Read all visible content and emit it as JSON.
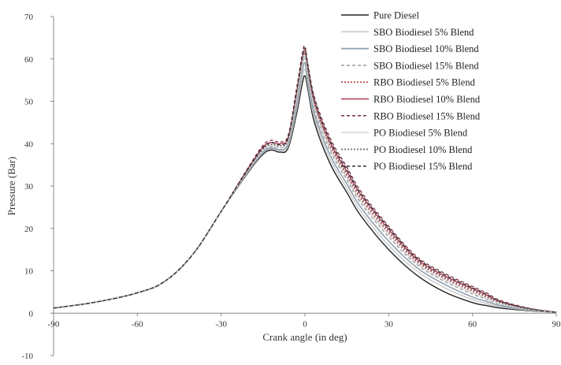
{
  "chart_data": {
    "type": "line",
    "title": "",
    "xlabel": "Crank angle (in deg)",
    "ylabel": "Pressure (Bar)",
    "xlim": [
      -90,
      90
    ],
    "ylim": [
      -10,
      70
    ],
    "x_ticks": [
      "-90",
      "-60",
      "-30",
      "0",
      "30",
      "60",
      "90"
    ],
    "y_ticks": [
      "-10",
      "0",
      "10",
      "20",
      "30",
      "40",
      "50",
      "60",
      "70"
    ],
    "grid": false,
    "legend_position": "top-right",
    "x": [
      -90,
      -75,
      -60,
      -50,
      -40,
      -30,
      -20,
      -15,
      -12,
      -9,
      -6,
      -3,
      -1,
      0,
      1,
      3,
      6,
      10,
      15,
      20,
      30,
      40,
      50,
      60,
      65,
      70,
      80,
      90
    ],
    "series": [
      {
        "name": "Pure Diesel",
        "color": "#222222",
        "dash": "solid",
        "width": 1.4,
        "values": [
          1.2,
          2.6,
          4.8,
          7.6,
          14,
          24,
          33.5,
          37.5,
          38.5,
          38,
          39,
          47,
          54,
          56,
          53,
          46,
          40,
          34,
          28.5,
          23,
          15,
          9,
          5,
          2.5,
          1.8,
          1.2,
          0.6,
          0.2
        ]
      },
      {
        "name": "SBO Biodiesel 5% Blend",
        "color": "#c8c8c8",
        "dash": "solid",
        "width": 1.4,
        "values": [
          1.2,
          2.6,
          4.8,
          7.6,
          14,
          24,
          33.7,
          37.8,
          38.8,
          38.3,
          39.5,
          48,
          55.5,
          57.5,
          54,
          47,
          41,
          35,
          29.5,
          24,
          16,
          10,
          6,
          3.2,
          2.3,
          1.5,
          0.7,
          0.2
        ]
      },
      {
        "name": "SBO  Biodiesel 10% Blend",
        "color": "#8e9fae",
        "dash": "solid",
        "width": 1.6,
        "values": [
          1.2,
          2.6,
          4.8,
          7.6,
          14,
          24,
          33.8,
          38,
          39,
          38.6,
          40,
          49,
          57,
          59,
          55,
          48,
          42,
          36,
          30.5,
          25,
          17,
          10.8,
          6.8,
          3.8,
          2.8,
          1.8,
          0.8,
          0.2
        ]
      },
      {
        "name": "SBO  Biodiesel  15% Blend",
        "color": "#9a9a9a",
        "dash": "4,3",
        "width": 1.3,
        "values": [
          1.2,
          2.6,
          4.8,
          7.6,
          14,
          24,
          34,
          38.3,
          39.3,
          39,
          40.5,
          50,
          58,
          60,
          56,
          49,
          43,
          37,
          31.5,
          26,
          18,
          11.5,
          7.5,
          4.5,
          3.3,
          2.1,
          0.9,
          0.2
        ]
      },
      {
        "name": "RBO Biodiesel 5% Blend",
        "color": "#c0504d",
        "dash": "2,2",
        "width": 1.6,
        "values": [
          1.2,
          2.6,
          4.8,
          7.6,
          14,
          24,
          34.3,
          38.8,
          39.8,
          39.5,
          41,
          51,
          59,
          61,
          57,
          50,
          44,
          38,
          32.5,
          27,
          19,
          12.2,
          8.2,
          5.2,
          3.8,
          2.4,
          1,
          0.2
        ]
      },
      {
        "name": "RBO  Biodiesel 10% Blend",
        "color": "#b03a55",
        "dash": "solid",
        "width": 1.4,
        "values": [
          1.2,
          2.6,
          4.8,
          7.6,
          14,
          24,
          34.5,
          39.2,
          40.3,
          40,
          41.5,
          52,
          60,
          62,
          58,
          51,
          45,
          39,
          33.5,
          28,
          19.8,
          12.8,
          8.8,
          5.8,
          4.3,
          2.7,
          1.1,
          0.2
        ]
      },
      {
        "name": "RBO Biodiesel 15% Blend",
        "color": "#7a2d3e",
        "dash": "4,3",
        "width": 1.3,
        "values": [
          1.2,
          2.6,
          4.8,
          7.6,
          14,
          24,
          34.7,
          39.6,
          40.8,
          40.4,
          42,
          53,
          61,
          63,
          59,
          52,
          46,
          40,
          34.5,
          28.8,
          20.5,
          13.4,
          9.4,
          6.3,
          4.8,
          3,
          1.2,
          0.2
        ]
      },
      {
        "name": "PO Biodiesel 5% Blend",
        "color": "#d8d8d8",
        "dash": "solid",
        "width": 1.4,
        "values": [
          1.2,
          2.6,
          4.8,
          7.6,
          14,
          24,
          34,
          38.4,
          39.5,
          39.1,
          40.6,
          50.5,
          58.5,
          60.5,
          56.5,
          49.5,
          43.5,
          37.5,
          32,
          26.5,
          18.5,
          11.8,
          7.8,
          4.8,
          3.5,
          2.2,
          0.9,
          0.2
        ]
      },
      {
        "name": "PO Biodiesel 10% Blend",
        "color": "#707070",
        "dash": "2,2",
        "width": 1.6,
        "values": [
          1.2,
          2.6,
          4.8,
          7.6,
          14,
          24,
          34.2,
          38.7,
          39.8,
          39.5,
          41,
          51.5,
          59.5,
          61.5,
          57.5,
          50.5,
          44.5,
          38.5,
          33,
          27.5,
          19.5,
          12.5,
          8.5,
          5.5,
          4,
          2.5,
          1,
          0.2
        ]
      },
      {
        "name": "PO Biodiesel 15% Blend",
        "color": "#333333",
        "dash": "4,3",
        "width": 1.3,
        "values": [
          1.2,
          2.6,
          4.8,
          7.6,
          14,
          24,
          34.4,
          39,
          40.2,
          39.8,
          41.4,
          52.5,
          60.5,
          62.5,
          58.5,
          51.5,
          45.5,
          39.5,
          34,
          28.3,
          20.2,
          13.1,
          9.1,
          6,
          4.5,
          2.8,
          1.1,
          0.2
        ]
      }
    ]
  }
}
